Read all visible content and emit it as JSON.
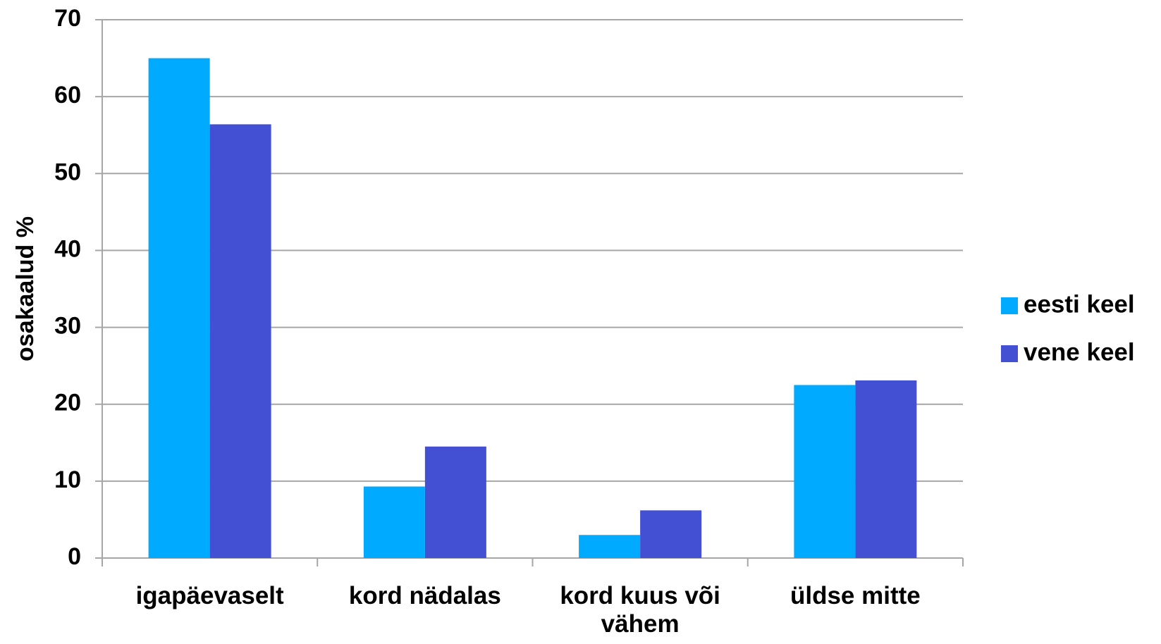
{
  "chart_data": {
    "type": "bar",
    "y_label": "osakaalud %",
    "categories": [
      "igapäevaselt",
      "kord nädalas",
      "kord kuus või vähem",
      "üldse mitte"
    ],
    "series": [
      {
        "name": "eesti keel",
        "color": "#00aaff",
        "values": [
          65,
          9.3,
          3,
          22.5
        ]
      },
      {
        "name": "vene keel",
        "color": "#4350d4",
        "values": [
          56.4,
          14.5,
          6.2,
          23.1
        ]
      }
    ],
    "ylim": [
      0,
      70
    ],
    "yticks": [
      0,
      10,
      20,
      30,
      40,
      50,
      60,
      70
    ],
    "grid": true,
    "legend": "right"
  }
}
